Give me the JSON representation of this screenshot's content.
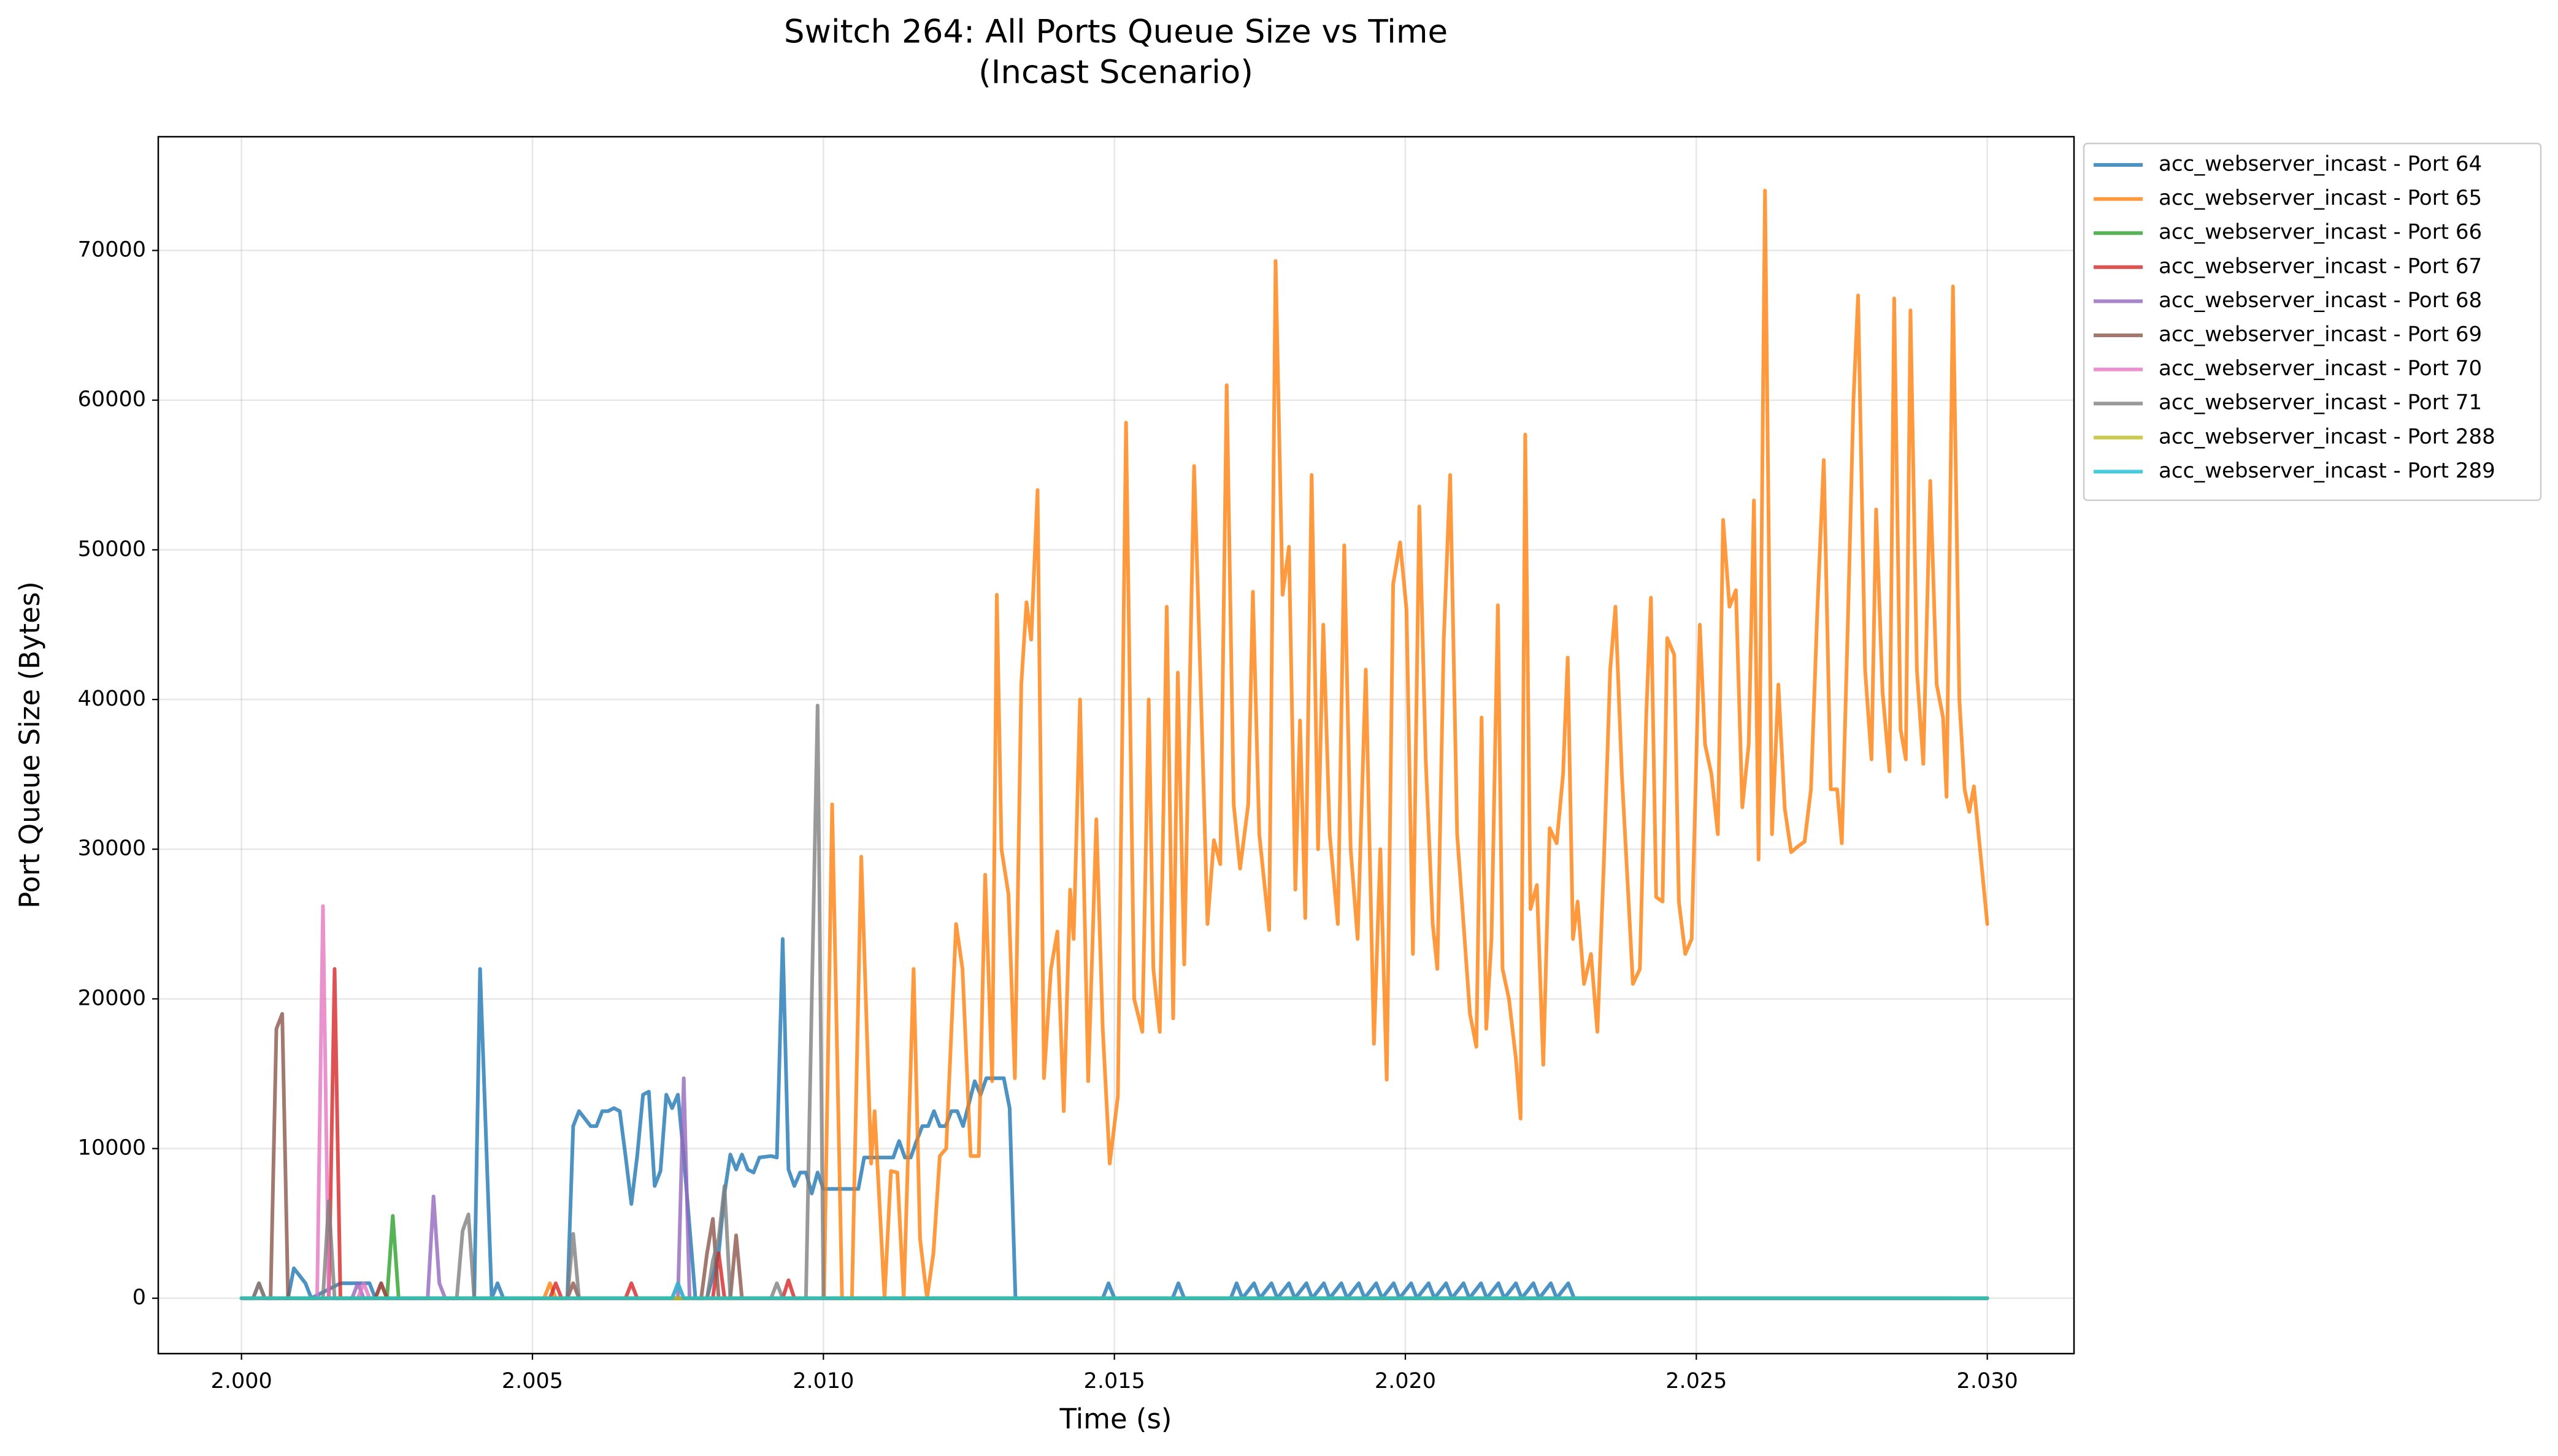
{
  "chart_data": {
    "type": "line",
    "title": [
      "Switch 264: All Ports Queue Size vs Time",
      "(Incast Scenario)"
    ],
    "x_label": "Time (s)",
    "y_label": "Port Queue Size (Bytes)",
    "xlim": [
      1.99857,
      2.03149
    ],
    "ylim": [
      -3700,
      77600
    ],
    "xticks": [
      {
        "value": 2.0,
        "label": "2.000"
      },
      2.005,
      {
        "value": 2.01,
        "label": "2.010"
      },
      2.015,
      {
        "value": 2.02,
        "label": "2.020"
      },
      2.025,
      {
        "value": 2.03,
        "label": "2.030"
      }
    ],
    "yticks": [
      0,
      10000,
      20000,
      30000,
      40000,
      50000,
      60000,
      70000
    ],
    "grid": true,
    "legend": "outside-right",
    "series": [
      {
        "name": "acc_webserver_incast - Port 64",
        "color": "#1f77b4",
        "x": [
          2.0,
          2.0008,
          2.0009,
          2.0011,
          2.0012,
          2.0017,
          2.002,
          2.0022,
          2.0023,
          2.004,
          2.0041,
          2.0043,
          2.0044,
          2.0045,
          2.0056,
          2.0057,
          2.0058,
          2.006,
          2.0061,
          2.0062,
          2.0063,
          2.0064,
          2.0065,
          2.0066,
          2.0067,
          2.0068,
          2.0069,
          2.007,
          2.0071,
          2.0072,
          2.0073,
          2.0074,
          2.0075,
          2.0076,
          2.0078,
          2.008,
          2.0082,
          2.0083,
          2.0084,
          2.0085,
          2.0086,
          2.0087,
          2.0088,
          2.0089,
          2.0091,
          2.0092,
          2.0093,
          2.0094,
          2.0095,
          2.0096,
          2.0097,
          2.0098,
          2.0099,
          2.01,
          2.0106,
          2.0107,
          2.0112,
          2.0113,
          2.0114,
          2.0115,
          2.0116,
          2.0117,
          2.0118,
          2.0119,
          2.012,
          2.0121,
          2.0122,
          2.0123,
          2.0124,
          2.0125,
          2.0126,
          2.0127,
          2.0128,
          2.0131,
          2.0132,
          2.0133,
          2.0148,
          2.0149,
          2.015,
          2.016,
          2.0161,
          2.0162,
          2.017,
          2.0171,
          2.0172,
          2.0174,
          2.0175,
          2.0177,
          2.0178,
          2.018,
          2.0181,
          2.0183,
          2.0184,
          2.0186,
          2.0187,
          2.0189,
          2.019,
          2.0192,
          2.0193,
          2.0195,
          2.0196,
          2.0198,
          2.0199,
          2.0201,
          2.0202,
          2.0204,
          2.0205,
          2.0207,
          2.0208,
          2.021,
          2.0211,
          2.0213,
          2.0214,
          2.0216,
          2.0217,
          2.0219,
          2.022,
          2.0222,
          2.0223,
          2.0225,
          2.0226,
          2.0228,
          2.0229,
          2.03
        ],
        "values": [
          0,
          0,
          2000,
          1000,
          0,
          1000,
          1000,
          1000,
          0,
          0,
          22000,
          0,
          1000,
          0,
          0,
          11500,
          12500,
          11500,
          11500,
          12500,
          12500,
          12700,
          12500,
          9500,
          6300,
          9500,
          13600,
          13800,
          7500,
          8500,
          13600,
          12700,
          13600,
          9500,
          0,
          0,
          3000,
          7000,
          9600,
          8600,
          9600,
          8600,
          8400,
          9400,
          9500,
          9400,
          24000,
          8600,
          7500,
          8400,
          8400,
          7000,
          8400,
          7300,
          7300,
          9400,
          9400,
          10500,
          9400,
          9400,
          10500,
          11500,
          11500,
          12500,
          11500,
          11500,
          12500,
          12500,
          11500,
          13000,
          14500,
          13600,
          14700,
          14700,
          12700,
          0,
          0,
          1000,
          0,
          0,
          1000,
          0,
          0,
          1000,
          0,
          1000,
          0,
          1000,
          0,
          1000,
          0,
          1000,
          0,
          1000,
          0,
          1000,
          0,
          1000,
          0,
          1000,
          0,
          1000,
          0,
          1000,
          0,
          1000,
          0,
          1000,
          0,
          1000,
          0,
          1000,
          0,
          1000,
          0,
          1000,
          0,
          1000,
          0,
          1000,
          0,
          1000,
          0,
          0
        ]
      },
      {
        "name": "acc_webserver_incast - Port 65",
        "color": "#ff7f0e",
        "x": [
          2.0,
          2.0052,
          2.0053,
          2.0054,
          2.01001,
          2.01015,
          2.01032,
          2.01049,
          2.01065,
          2.01082,
          2.01088,
          2.01105,
          2.01116,
          2.01127,
          2.01138,
          2.01155,
          2.01166,
          2.01178,
          2.01189,
          2.012,
          2.01211,
          2.01228,
          2.01239,
          2.01253,
          2.01267,
          2.01278,
          2.0129,
          2.01298,
          2.01306,
          2.01318,
          2.01329,
          2.0134,
          2.01349,
          2.01357,
          2.01368,
          2.01379,
          2.01391,
          2.01402,
          2.01413,
          2.01424,
          2.0143,
          2.01441,
          2.01455,
          2.01469,
          2.0148,
          2.01492,
          2.01506,
          2.0152,
          2.01534,
          2.01548,
          2.01559,
          2.01567,
          2.01578,
          2.0159,
          2.01601,
          2.01609,
          2.0162,
          2.01637,
          2.01649,
          2.0166,
          2.01671,
          2.01682,
          2.01693,
          2.01705,
          2.01716,
          2.0173,
          2.01738,
          2.01749,
          2.01766,
          2.01777,
          2.01789,
          2.018,
          2.01811,
          2.01819,
          2.01828,
          2.01839,
          2.0185,
          2.01859,
          2.0187,
          2.01884,
          2.01895,
          2.01906,
          2.01918,
          2.01932,
          2.01946,
          2.01957,
          2.01968,
          2.01979,
          2.01991,
          2.02002,
          2.02013,
          2.02024,
          2.02035,
          2.02047,
          2.02055,
          2.02066,
          2.02077,
          2.02089,
          2.021,
          2.02111,
          2.02122,
          2.02131,
          2.02139,
          2.02148,
          2.02159,
          2.02167,
          2.02178,
          2.0219,
          2.02198,
          2.02206,
          2.02215,
          2.02226,
          2.02237,
          2.02248,
          2.0226,
          2.02271,
          2.02279,
          2.02288,
          2.02296,
          2.02307,
          2.02319,
          2.0233,
          2.02341,
          2.02352,
          2.02361,
          2.02372,
          2.02383,
          2.02391,
          2.02403,
          2.02414,
          2.02422,
          2.02431,
          2.02442,
          2.0245,
          2.02462,
          2.0247,
          2.02481,
          2.02492,
          2.02506,
          2.02515,
          2.02526,
          2.02537,
          2.02546,
          2.02557,
          2.02568,
          2.02579,
          2.0259,
          2.02599,
          2.02607,
          2.02618,
          2.0263,
          2.02641,
          2.02652,
          2.02663,
          2.02675,
          2.02686,
          2.02697,
          2.02708,
          2.02719,
          2.02731,
          2.02742,
          2.0275,
          2.02761,
          2.0277,
          2.02778,
          2.0279,
          2.02801,
          2.02809,
          2.0282,
          2.02832,
          2.0284,
          2.02851,
          2.0286,
          2.02868,
          2.02879,
          2.0289,
          2.02902,
          2.02913,
          2.02924,
          2.0293,
          2.02941,
          2.02952,
          2.02961,
          2.02969,
          2.02977,
          2.03
        ],
        "values": [
          0,
          0,
          1000,
          0,
          0,
          33000,
          0,
          0,
          29500,
          9000,
          12500,
          0,
          8500,
          8400,
          0,
          22000,
          4000,
          0,
          3000,
          9500,
          10000,
          25000,
          22000,
          9500,
          9500,
          28300,
          14500,
          47000,
          30000,
          27000,
          14700,
          41000,
          46500,
          44000,
          54000,
          14700,
          22000,
          24500,
          12500,
          27300,
          24000,
          40000,
          14500,
          32000,
          18000,
          9000,
          13500,
          58500,
          20000,
          17800,
          40000,
          22000,
          17800,
          46200,
          18700,
          41800,
          22300,
          55600,
          40000,
          25000,
          30600,
          29000,
          61000,
          33000,
          28700,
          33000,
          47200,
          31000,
          24600,
          69300,
          47000,
          50200,
          27300,
          38600,
          25400,
          55000,
          30000,
          45000,
          31000,
          25000,
          50300,
          30000,
          24000,
          42000,
          17000,
          30000,
          14600,
          47700,
          50500,
          46000,
          23000,
          52900,
          36000,
          25000,
          22000,
          44000,
          55000,
          31000,
          25000,
          19000,
          16800,
          38800,
          18000,
          24000,
          46300,
          22000,
          20000,
          16000,
          12000,
          57700,
          26000,
          27600,
          15600,
          31400,
          30400,
          35000,
          42800,
          24000,
          26500,
          21000,
          23000,
          17800,
          29000,
          42000,
          46200,
          35000,
          27000,
          21000,
          22000,
          39000,
          46800,
          26800,
          26500,
          44100,
          43000,
          26500,
          23000,
          24000,
          45000,
          37000,
          35000,
          31000,
          52000,
          46200,
          47300,
          32800,
          37000,
          53300,
          29300,
          74000,
          31000,
          41000,
          32700,
          29800,
          30200,
          30500,
          34000,
          46000,
          56000,
          34000,
          34000,
          30400,
          46000,
          60000,
          67000,
          42000,
          36000,
          52700,
          40500,
          35200,
          66800,
          38000,
          36000,
          66000,
          42000,
          35700,
          54600,
          41000,
          38800,
          33500,
          67600,
          40000,
          34000,
          32500,
          34200,
          25000
        ]
      },
      {
        "name": "acc_webserver_incast - Port 66",
        "color": "#2ca02c",
        "x": [
          2.0,
          2.0025,
          2.0026,
          2.0027,
          2.03
        ],
        "values": [
          0,
          0,
          5500,
          0,
          0
        ]
      },
      {
        "name": "acc_webserver_incast - Port 67",
        "color": "#d62728",
        "x": [
          2.0,
          2.0015,
          2.0016,
          2.0017,
          2.0023,
          2.0024,
          2.0025,
          2.0053,
          2.0054,
          2.0055,
          2.0066,
          2.0067,
          2.0068,
          2.0081,
          2.0082,
          2.0083,
          2.0093,
          2.0094,
          2.0095,
          2.03
        ],
        "values": [
          0,
          0,
          22000,
          0,
          0,
          1000,
          0,
          0,
          1000,
          0,
          0,
          1000,
          0,
          0,
          3000,
          0,
          0,
          1200,
          0,
          0
        ]
      },
      {
        "name": "acc_webserver_incast - Port 68",
        "color": "#9467bd",
        "x": [
          2.0,
          2.0019,
          2.002,
          2.0021,
          2.0032,
          2.0033,
          2.0034,
          2.0035,
          2.0075,
          2.0076,
          2.0077,
          2.03
        ],
        "values": [
          0,
          0,
          1000,
          0,
          0,
          6800,
          1000,
          0,
          0,
          14700,
          0,
          0
        ]
      },
      {
        "name": "acc_webserver_incast - Port 69",
        "color": "#8c564b",
        "x": [
          2.0,
          2.0002,
          2.0003,
          2.0004,
          2.0005,
          2.0006,
          2.0007,
          2.0008,
          2.0023,
          2.0024,
          2.0025,
          2.0056,
          2.0057,
          2.0058,
          2.0079,
          2.008,
          2.0081,
          2.0082,
          2.0084,
          2.0085,
          2.0086,
          2.03
        ],
        "values": [
          0,
          0,
          1000,
          0,
          0,
          18000,
          19000,
          0,
          0,
          1000,
          0,
          0,
          1000,
          0,
          0,
          3000,
          5300,
          0,
          0,
          4200,
          0,
          0
        ]
      },
      {
        "name": "acc_webserver_incast - Port 70",
        "color": "#e377c2",
        "x": [
          2.0,
          2.0013,
          2.0014,
          2.0015,
          2.002,
          2.0021,
          2.0022,
          2.0074,
          2.0075,
          2.0076,
          2.03
        ],
        "values": [
          0,
          0,
          26200,
          0,
          0,
          1000,
          0,
          0,
          1000,
          0,
          0
        ]
      },
      {
        "name": "acc_webserver_incast - Port 71",
        "color": "#7f7f7f",
        "x": [
          2.0,
          2.0002,
          2.0003,
          2.0004,
          2.0014,
          2.0015,
          2.0016,
          2.0037,
          2.0038,
          2.0039,
          2.004,
          2.0056,
          2.0057,
          2.0058,
          2.008,
          2.0081,
          2.0082,
          2.0083,
          2.0084,
          2.0091,
          2.0092,
          2.0093,
          2.0097,
          2.0098,
          2.0099,
          2.01,
          2.03
        ],
        "values": [
          0,
          0,
          1000,
          0,
          0,
          6500,
          0,
          0,
          4500,
          5600,
          0,
          0,
          4300,
          0,
          0,
          2500,
          4000,
          7500,
          0,
          0,
          1000,
          0,
          0,
          20000,
          39600,
          0,
          0
        ]
      },
      {
        "name": "acc_webserver_incast - Port 288",
        "color": "#bcbd22",
        "x": [
          2.0,
          2.03
        ],
        "values": [
          0,
          0
        ]
      },
      {
        "name": "acc_webserver_incast - Port 289",
        "color": "#17becf",
        "x": [
          2.0,
          2.0074,
          2.0075,
          2.0076,
          2.03
        ],
        "values": [
          0,
          0,
          1000,
          0,
          0
        ]
      }
    ]
  }
}
